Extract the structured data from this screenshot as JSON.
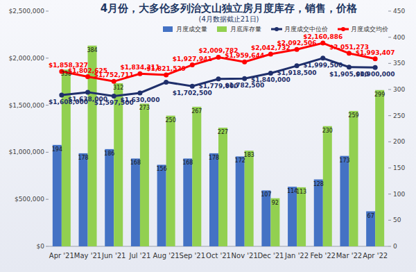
{
  "chart_data": {
    "type": "bar",
    "title": "4月份，大多伦多列治文山独立房月度库存，销售，价格",
    "subtitle": "(4月数据截止21日)",
    "categories": [
      "Apr '21",
      "May '21",
      "Jun '21",
      "Jul '21",
      "Aug '21",
      "Sep '21",
      "Oct '21",
      "Nov '21",
      "Dec '21",
      "Jan '22",
      "Feb '22",
      "Mar '22",
      "Apr '22"
    ],
    "ylim": [
      0,
      2500000
    ],
    "yticks": [
      {
        "value": 0,
        "label": "$0"
      },
      {
        "value": 500000,
        "label": "$500,000"
      },
      {
        "value": 1000000,
        "label": "$1,000,000"
      },
      {
        "value": 1500000,
        "label": "$1,500,000"
      },
      {
        "value": 2000000,
        "label": "$2,000,000"
      },
      {
        "value": 2500000,
        "label": "$2,500,000"
      }
    ],
    "y2lim": [
      0,
      450
    ],
    "y2ticks": [
      0,
      50,
      100,
      150,
      200,
      250,
      300,
      350,
      400,
      450
    ],
    "grid": false,
    "data_labels": true,
    "legend": "top",
    "series": [
      {
        "name": "月度成交量",
        "type": "bar",
        "axis": "y2",
        "color": "#4472c4",
        "values": [
          194,
          178,
          186,
          168,
          156,
          168,
          178,
          172,
          107,
          114,
          128,
          173,
          67
        ]
      },
      {
        "name": "月底库存量",
        "type": "bar",
        "axis": "y2",
        "color": "#92d050",
        "values": [
          338,
          384,
          312,
          273,
          250,
          267,
          227,
          183,
          92,
          113,
          230,
          259,
          299
        ]
      },
      {
        "name": "月度成交中位价",
        "type": "line",
        "color": "#1f2f6b",
        "marker": "circle",
        "values": [
          1608000,
          1638000,
          1597500,
          1630000,
          1745000,
          1702500,
          1779000,
          1782500,
          1840000,
          1918500,
          1999500,
          1905000,
          1900000
        ],
        "value_labels": [
          "$1,608,000",
          "$1,638,000",
          "$1,597,500",
          "$1,630,000",
          null,
          "$1,702,500",
          "$1,779,000",
          "$1,782,500",
          "$1,840,000",
          "$1,918,500",
          "$1,999,500",
          "$1,905,000",
          "$1,900,000"
        ]
      },
      {
        "name": "月度成交均价",
        "type": "line",
        "color": "#ff0000",
        "marker": "circle",
        "values": [
          1858327,
          1802625,
          1752711,
          1834311,
          1821529,
          1927941,
          2009782,
          1959644,
          2042732,
          2092506,
          2160886,
          2051273,
          1993407
        ],
        "value_labels": [
          "$1,858,327",
          "$1,802,625",
          "$1,752,711",
          "$1,834,311",
          "$1,821,529",
          "$1,927,941",
          "$2,009,782",
          "$1,959,644",
          "$2,042,732",
          "$2,092,506",
          "$2,160,886",
          "$2,051,273",
          "$1,993,407"
        ]
      }
    ]
  }
}
